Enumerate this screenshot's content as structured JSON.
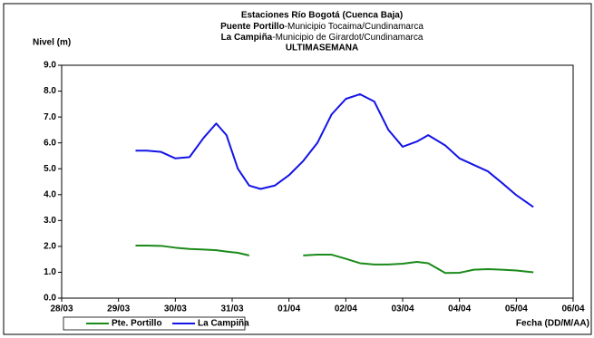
{
  "chart_data": {
    "type": "line",
    "title": "Estaciones Río Bogotá (Cuenca Baja)",
    "station_1_name": "Puente Portillo",
    "station_1_desc": "-Municipio Tocaima/Cundinamarca",
    "station_2_name": "La Campiña",
    "station_2_desc": "-Municipio de Girardot/Cundinamarca",
    "period": "ULTIMASEMANA",
    "y_label": "Nivel (m)",
    "x_label": "Fecha (DD/M/AA)",
    "x": [
      1.3,
      1.5,
      1.75,
      2.0,
      2.25,
      2.5,
      2.72,
      2.9,
      3.1,
      3.3,
      3.5,
      3.75,
      4.0,
      4.25,
      4.5,
      4.75,
      5.0,
      5.25,
      5.5,
      5.75,
      6.0,
      6.25,
      6.45,
      6.75,
      7.0,
      7.25,
      7.5,
      7.75,
      8.0,
      8.3
    ],
    "series": [
      {
        "name": "Pte. Portillo",
        "color": "#1a8a1a",
        "values": [
          2.03,
          2.03,
          2.02,
          1.95,
          1.9,
          1.88,
          1.85,
          1.8,
          1.75,
          1.65,
          null,
          null,
          null,
          1.65,
          1.68,
          1.68,
          1.52,
          1.35,
          1.3,
          1.3,
          1.33,
          1.4,
          1.35,
          0.97,
          0.98,
          1.1,
          1.12,
          1.1,
          1.07,
          1.0
        ]
      },
      {
        "name": "La Campiña",
        "color": "#1414e6",
        "values": [
          5.7,
          5.7,
          5.65,
          5.4,
          5.45,
          6.2,
          6.75,
          6.3,
          5.0,
          4.35,
          4.22,
          4.35,
          4.75,
          5.3,
          6.0,
          7.1,
          7.7,
          7.88,
          7.6,
          6.5,
          5.85,
          6.05,
          6.3,
          5.9,
          5.4,
          5.15,
          4.9,
          4.45,
          3.98,
          3.52
        ]
      }
    ],
    "xlim": [
      0,
      9
    ],
    "xticks": [
      {
        "value": 0,
        "label": "28/03"
      },
      {
        "value": 1,
        "label": "29/03"
      },
      {
        "value": 2,
        "label": "30/03"
      },
      {
        "value": 3,
        "label": "31/03"
      },
      {
        "value": 4,
        "label": "01/04"
      },
      {
        "value": 5,
        "label": "02/04"
      },
      {
        "value": 6,
        "label": "03/04"
      },
      {
        "value": 7,
        "label": "04/04"
      },
      {
        "value": 8,
        "label": "05/04"
      },
      {
        "value": 9,
        "label": "06/04"
      }
    ],
    "ylim": [
      0,
      9
    ],
    "yticks": [
      {
        "value": 0,
        "label": "0.0"
      },
      {
        "value": 1,
        "label": "1.0"
      },
      {
        "value": 2,
        "label": "2.0"
      },
      {
        "value": 3,
        "label": "3.0"
      },
      {
        "value": 4,
        "label": "4.0"
      },
      {
        "value": 5,
        "label": "5.0"
      },
      {
        "value": 6,
        "label": "6.0"
      },
      {
        "value": 7,
        "label": "7.0"
      },
      {
        "value": 8,
        "label": "8.0"
      },
      {
        "value": 9,
        "label": "9.0"
      }
    ]
  }
}
